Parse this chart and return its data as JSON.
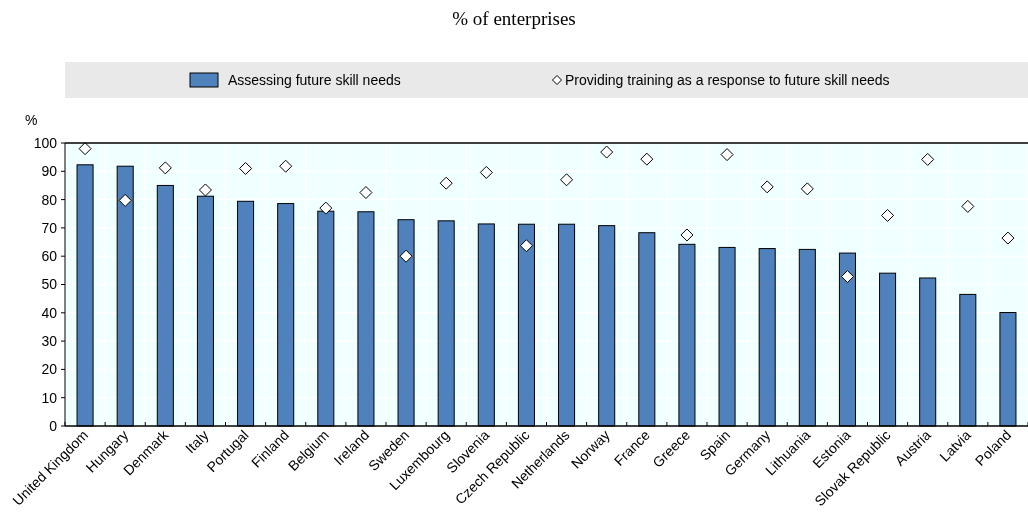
{
  "chart_data": {
    "type": "bar",
    "title": "% of enterprises",
    "ylabel": "%",
    "categories": [
      "United Kingdom",
      "Hungary",
      "Denmark",
      "Italy",
      "Portugal",
      "Finland",
      "Belgium",
      "Ireland",
      "Sweden",
      "Luxembourg",
      "Slovenia",
      "Czech Republic",
      "Netherlands",
      "Norway",
      "France",
      "Greece",
      "Spain",
      "Germany",
      "Lithuania",
      "Estonia",
      "Slovak Republic",
      "Austria",
      "Latvia",
      "Poland"
    ],
    "series": [
      {
        "name": "Assessing future skill needs",
        "color": "#4f81bd",
        "values": [
          92.3,
          91.8,
          85,
          81.2,
          79.4,
          78.6,
          75.9,
          75.7,
          72.9,
          72.5,
          71.4,
          71.3,
          71.3,
          70.8,
          68.3,
          64.2,
          63.1,
          62.7,
          62.4,
          61.1,
          54,
          52.3,
          46.5,
          40.1
        ]
      },
      {
        "name": "Providing training as a response to future skill needs",
        "type": "scatter",
        "color": "#ffffff",
        "marker": "diamond",
        "values": [
          98,
          79.7,
          91.2,
          83.4,
          91,
          91.8,
          77,
          82.5,
          60,
          85.8,
          89.6,
          63.7,
          87,
          96.8,
          94.3,
          67.5,
          95.9,
          84.5,
          83.8,
          52.8,
          74.4,
          94.2,
          77.6,
          66.4
        ]
      }
    ],
    "ylim": [
      0,
      100
    ],
    "yticks": [
      0,
      10,
      20,
      30,
      40,
      50,
      60,
      70,
      80,
      90,
      100
    ],
    "grid": true,
    "legend": "top"
  }
}
